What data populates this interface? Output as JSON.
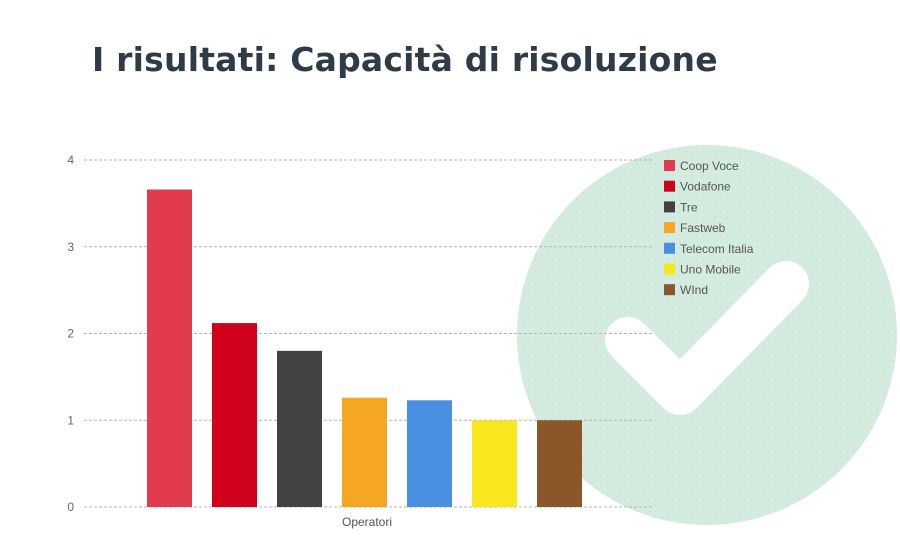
{
  "slide": {
    "title": "I risultati: Capacità di risoluzione"
  },
  "decoration": {
    "icon": "checkmark-circle-icon",
    "circle_color": "#d4ebe0",
    "check_color": "#ffffff"
  },
  "chart_data": {
    "type": "bar",
    "title": "",
    "xlabel": "Operatori",
    "ylabel": "",
    "ylim": [
      0,
      4
    ],
    "yticks": [
      0,
      1,
      2,
      3,
      4
    ],
    "grid": true,
    "legend_position": "top-right",
    "series": [
      {
        "name": "Coop Voce",
        "value": 3.66,
        "color": "#e23b4e"
      },
      {
        "name": "Vodafone",
        "value": 2.12,
        "color": "#d0021b"
      },
      {
        "name": "Tre",
        "value": 1.8,
        "color": "#424242"
      },
      {
        "name": "Fastweb",
        "value": 1.26,
        "color": "#f5a623"
      },
      {
        "name": "Telecom Italia",
        "value": 1.23,
        "color": "#4a90e2"
      },
      {
        "name": "Uno Mobile",
        "value": 1.0,
        "color": "#f8e71c"
      },
      {
        "name": "WInd",
        "value": 1.0,
        "color": "#8b572a"
      }
    ]
  }
}
